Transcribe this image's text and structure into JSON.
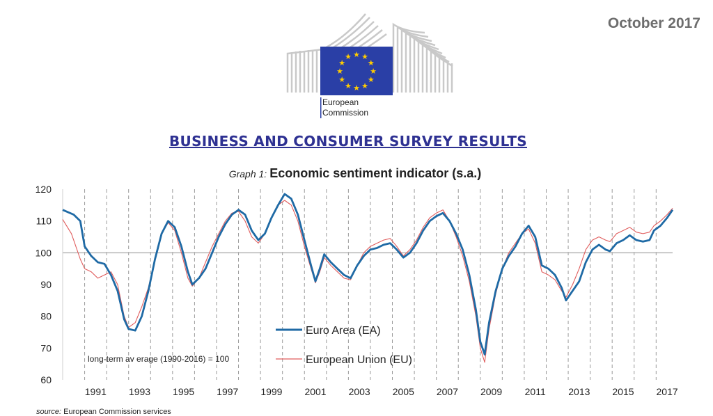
{
  "header": {
    "date": "October 2017",
    "logo_text_line1": "European",
    "logo_text_line2": "Commission",
    "title": "BUSINESS AND CONSUMER SURVEY RESULTS"
  },
  "graph": {
    "label": "Graph 1:",
    "title": "Economic sentiment indicator (s.a.)"
  },
  "note": "long-term av erage (1990-2016) = 100",
  "source_label": "source:",
  "source_text": "European Commission services",
  "colors": {
    "ea": "#1f6aa5",
    "eu": "#e05c5c",
    "reference_line": "#b5b5b5",
    "title": "#2e3192",
    "eu_flag": "#2a3fa6",
    "stars": "#ffcc00"
  },
  "chart_data": {
    "type": "line",
    "title": "Economic sentiment indicator (s.a.)",
    "xlim": [
      1990,
      2017.75
    ],
    "ylim": [
      60,
      120
    ],
    "yticks": [
      60,
      70,
      80,
      90,
      100,
      110,
      120
    ],
    "xtick_labels": [
      "1991",
      "1993",
      "1995",
      "1997",
      "1999",
      "2001",
      "2003",
      "2005",
      "2007",
      "2009",
      "2011",
      "2013",
      "2015",
      "2017"
    ],
    "reference_line": 100,
    "legend_position": "bottom-center",
    "series": [
      {
        "name": "Euro Area (EA)",
        "points": [
          [
            1990,
            113.5
          ],
          [
            1990.5,
            112
          ],
          [
            1990.8,
            110
          ],
          [
            1991.0,
            102
          ],
          [
            1991.3,
            99
          ],
          [
            1991.6,
            97
          ],
          [
            1991.9,
            96.5
          ],
          [
            1992.2,
            93
          ],
          [
            1992.5,
            88
          ],
          [
            1992.8,
            79
          ],
          [
            1993.0,
            76
          ],
          [
            1993.3,
            75.5
          ],
          [
            1993.6,
            80
          ],
          [
            1993.9,
            88
          ],
          [
            1994.2,
            98
          ],
          [
            1994.5,
            106
          ],
          [
            1994.8,
            110
          ],
          [
            1995.1,
            108
          ],
          [
            1995.4,
            102
          ],
          [
            1995.7,
            94
          ],
          [
            1995.9,
            90
          ],
          [
            1996.2,
            92
          ],
          [
            1996.5,
            95
          ],
          [
            1996.8,
            100
          ],
          [
            1997.1,
            105
          ],
          [
            1997.4,
            109
          ],
          [
            1997.7,
            112
          ],
          [
            1998.0,
            113.5
          ],
          [
            1998.3,
            112
          ],
          [
            1998.6,
            107
          ],
          [
            1998.9,
            104
          ],
          [
            1999.2,
            106
          ],
          [
            1999.5,
            111
          ],
          [
            1999.8,
            115
          ],
          [
            2000.1,
            118.5
          ],
          [
            2000.4,
            117
          ],
          [
            2000.7,
            112
          ],
          [
            2001.0,
            104
          ],
          [
            2001.3,
            96
          ],
          [
            2001.5,
            91
          ],
          [
            2001.7,
            95
          ],
          [
            2001.9,
            99.5
          ],
          [
            2002.2,
            97
          ],
          [
            2002.5,
            95
          ],
          [
            2002.8,
            93
          ],
          [
            2003.1,
            92
          ],
          [
            2003.4,
            96
          ],
          [
            2003.7,
            99
          ],
          [
            2004.0,
            101
          ],
          [
            2004.3,
            101.5
          ],
          [
            2004.6,
            102.5
          ],
          [
            2004.9,
            103
          ],
          [
            2005.2,
            101
          ],
          [
            2005.5,
            98.5
          ],
          [
            2005.8,
            100
          ],
          [
            2006.1,
            103
          ],
          [
            2006.4,
            107
          ],
          [
            2006.7,
            110
          ],
          [
            2007.0,
            111.5
          ],
          [
            2007.3,
            112.5
          ],
          [
            2007.6,
            110
          ],
          [
            2007.9,
            106
          ],
          [
            2008.2,
            101
          ],
          [
            2008.5,
            93
          ],
          [
            2008.8,
            82
          ],
          [
            2009.0,
            72
          ],
          [
            2009.2,
            68
          ],
          [
            2009.4,
            78
          ],
          [
            2009.7,
            88
          ],
          [
            2010.0,
            95
          ],
          [
            2010.3,
            99
          ],
          [
            2010.6,
            102
          ],
          [
            2010.9,
            106
          ],
          [
            2011.2,
            108.5
          ],
          [
            2011.5,
            105
          ],
          [
            2011.8,
            96
          ],
          [
            2012.1,
            95
          ],
          [
            2012.4,
            93
          ],
          [
            2012.7,
            89
          ],
          [
            2012.9,
            85
          ],
          [
            2013.2,
            88
          ],
          [
            2013.5,
            91
          ],
          [
            2013.8,
            97
          ],
          [
            2014.1,
            101
          ],
          [
            2014.4,
            102.5
          ],
          [
            2014.7,
            101
          ],
          [
            2014.9,
            100.5
          ],
          [
            2015.2,
            103
          ],
          [
            2015.5,
            104
          ],
          [
            2015.8,
            105.5
          ],
          [
            2016.1,
            104
          ],
          [
            2016.4,
            103.5
          ],
          [
            2016.7,
            104
          ],
          [
            2016.9,
            107
          ],
          [
            2017.2,
            108.5
          ],
          [
            2017.5,
            111
          ],
          [
            2017.75,
            113.5
          ]
        ]
      },
      {
        "name": "European Union (EU)",
        "points": [
          [
            1990,
            110.5
          ],
          [
            1990.4,
            106
          ],
          [
            1990.8,
            98
          ],
          [
            1991.0,
            95
          ],
          [
            1991.3,
            94
          ],
          [
            1991.6,
            92
          ],
          [
            1991.9,
            93
          ],
          [
            1992.2,
            94
          ],
          [
            1992.5,
            90
          ],
          [
            1992.8,
            80
          ],
          [
            1993.0,
            76.5
          ],
          [
            1993.3,
            78
          ],
          [
            1993.6,
            83
          ],
          [
            1993.9,
            89
          ],
          [
            1994.2,
            98
          ],
          [
            1994.5,
            106
          ],
          [
            1994.8,
            109.5
          ],
          [
            1995.1,
            107
          ],
          [
            1995.4,
            100
          ],
          [
            1995.7,
            92
          ],
          [
            1995.9,
            89.5
          ],
          [
            1996.2,
            92
          ],
          [
            1996.5,
            97
          ],
          [
            1996.8,
            102
          ],
          [
            1997.1,
            106
          ],
          [
            1997.4,
            110
          ],
          [
            1997.7,
            112.5
          ],
          [
            1998.0,
            113
          ],
          [
            1998.3,
            110
          ],
          [
            1998.6,
            105
          ],
          [
            1998.9,
            103
          ],
          [
            1999.2,
            106
          ],
          [
            1999.5,
            111
          ],
          [
            1999.8,
            115
          ],
          [
            2000.1,
            116.5
          ],
          [
            2000.4,
            115
          ],
          [
            2000.7,
            110
          ],
          [
            2001.0,
            102
          ],
          [
            2001.3,
            95
          ],
          [
            2001.5,
            90.5
          ],
          [
            2001.7,
            94
          ],
          [
            2001.9,
            98.5
          ],
          [
            2002.2,
            96
          ],
          [
            2002.5,
            94
          ],
          [
            2002.8,
            92
          ],
          [
            2003.1,
            91.5
          ],
          [
            2003.4,
            96
          ],
          [
            2003.7,
            100
          ],
          [
            2004.0,
            102
          ],
          [
            2004.3,
            103
          ],
          [
            2004.6,
            104
          ],
          [
            2004.9,
            104.5
          ],
          [
            2005.2,
            102
          ],
          [
            2005.5,
            99
          ],
          [
            2005.8,
            101
          ],
          [
            2006.1,
            104
          ],
          [
            2006.4,
            108
          ],
          [
            2006.7,
            111
          ],
          [
            2007.0,
            112.5
          ],
          [
            2007.3,
            113.5
          ],
          [
            2007.6,
            110
          ],
          [
            2007.9,
            105
          ],
          [
            2008.2,
            99
          ],
          [
            2008.5,
            91
          ],
          [
            2008.8,
            80
          ],
          [
            2009.0,
            70
          ],
          [
            2009.2,
            65.5
          ],
          [
            2009.4,
            76
          ],
          [
            2009.7,
            87
          ],
          [
            2010.0,
            95
          ],
          [
            2010.3,
            100
          ],
          [
            2010.6,
            103
          ],
          [
            2010.9,
            106
          ],
          [
            2011.2,
            107.5
          ],
          [
            2011.5,
            103
          ],
          [
            2011.8,
            94
          ],
          [
            2012.1,
            93
          ],
          [
            2012.4,
            91.5
          ],
          [
            2012.7,
            88
          ],
          [
            2012.9,
            86
          ],
          [
            2013.2,
            90
          ],
          [
            2013.5,
            95
          ],
          [
            2013.8,
            101
          ],
          [
            2014.1,
            104
          ],
          [
            2014.4,
            105
          ],
          [
            2014.7,
            104
          ],
          [
            2014.9,
            103.5
          ],
          [
            2015.2,
            106
          ],
          [
            2015.5,
            107
          ],
          [
            2015.8,
            108
          ],
          [
            2016.1,
            106.5
          ],
          [
            2016.4,
            106
          ],
          [
            2016.7,
            106.5
          ],
          [
            2016.9,
            108.5
          ],
          [
            2017.2,
            110
          ],
          [
            2017.5,
            112
          ],
          [
            2017.75,
            114
          ]
        ]
      }
    ]
  }
}
